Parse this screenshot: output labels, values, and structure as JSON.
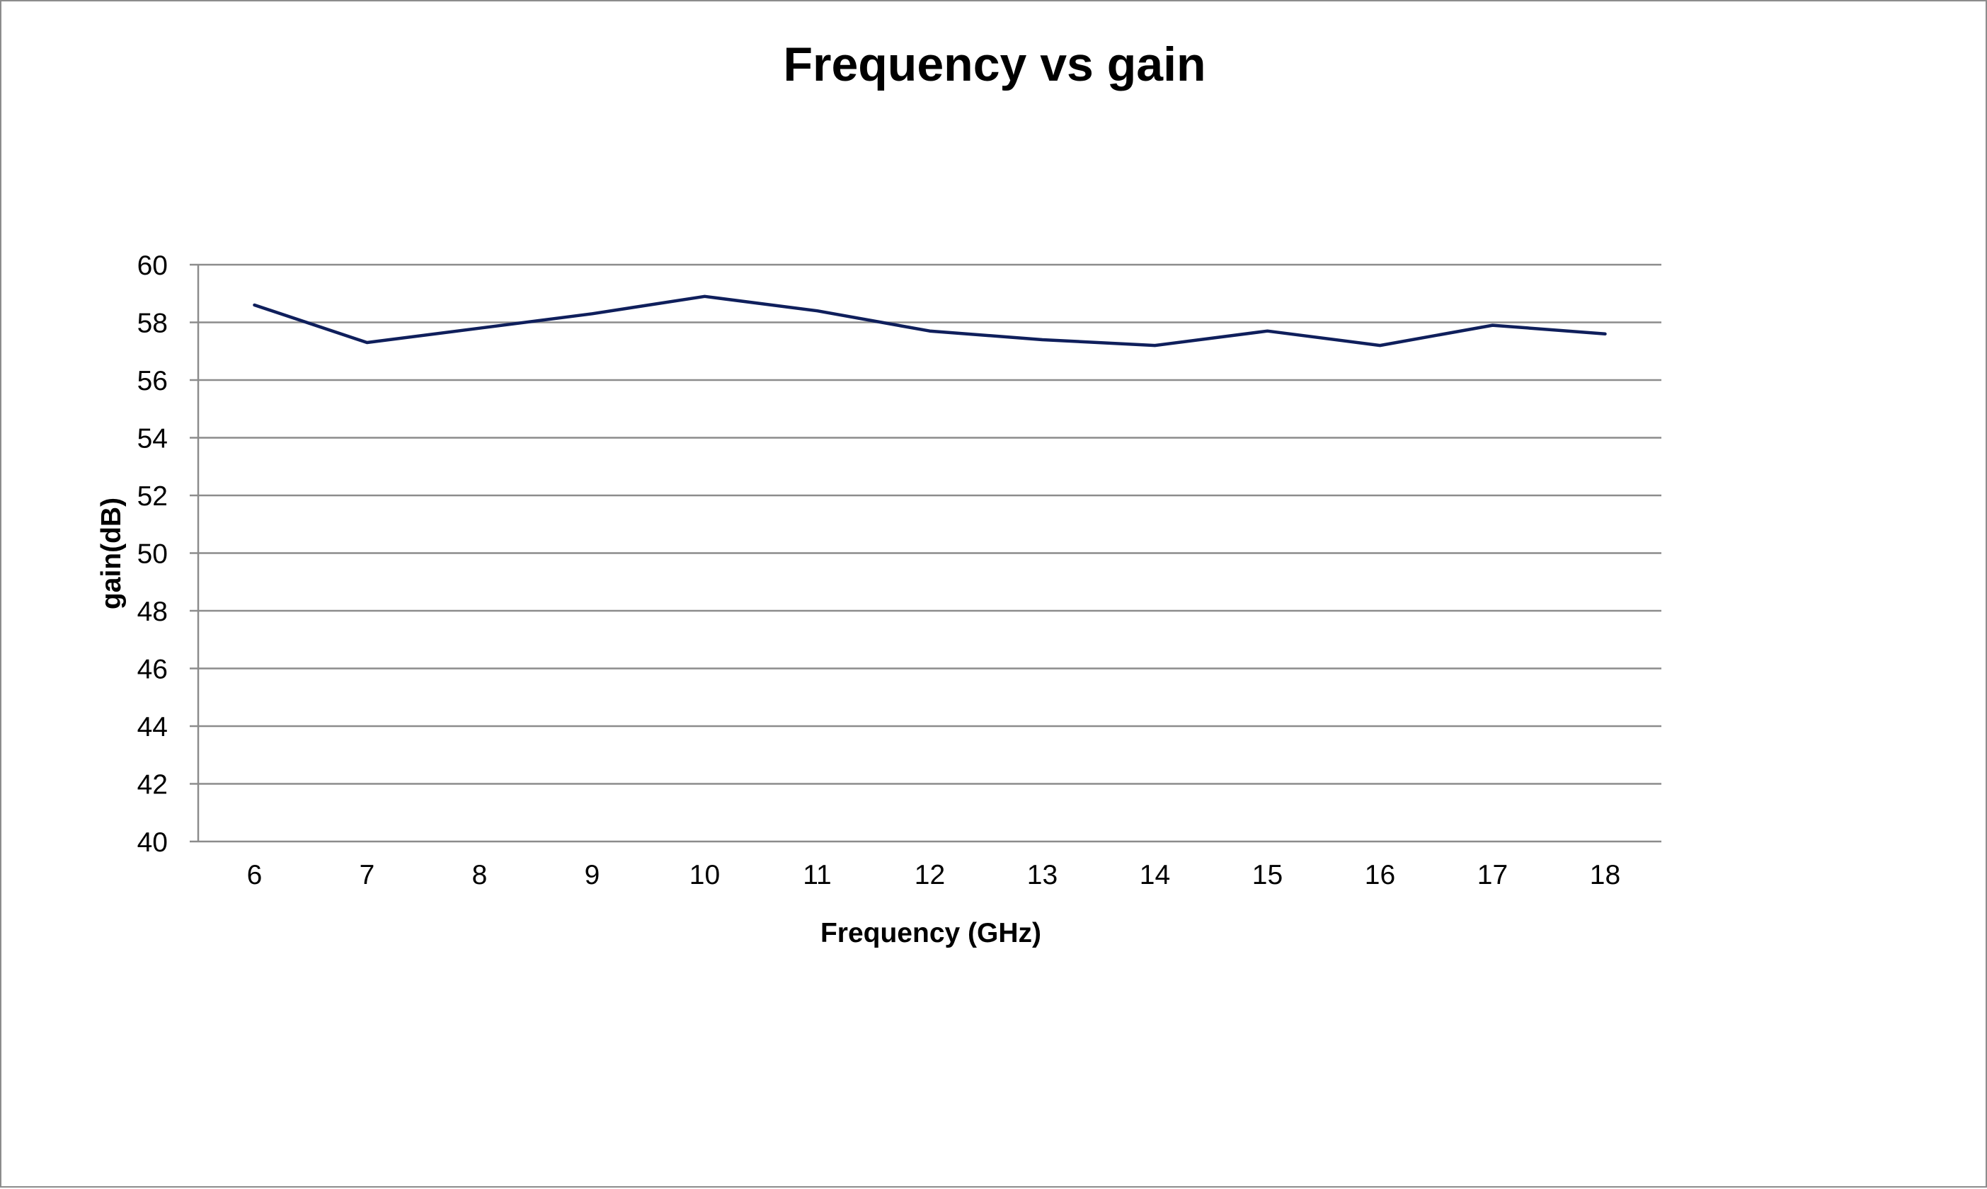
{
  "chart_data": {
    "type": "line",
    "title": "Frequency vs gain",
    "xlabel": "Frequency (GHz)",
    "ylabel": "gain(dB)",
    "categories": [
      "6",
      "7",
      "8",
      "9",
      "10",
      "11",
      "12",
      "13",
      "14",
      "15",
      "16",
      "17",
      "18"
    ],
    "series": [
      {
        "values": [
          58.6,
          57.3,
          57.8,
          58.3,
          58.9,
          58.4,
          57.7,
          57.4,
          57.2,
          57.7,
          57.2,
          57.9,
          57.6
        ],
        "color": "#0f1f5c"
      }
    ],
    "ylim": [
      40,
      60
    ],
    "yticks": [
      "40",
      "42",
      "44",
      "46",
      "48",
      "50",
      "52",
      "54",
      "56",
      "58",
      "60"
    ],
    "grid": "horizontal",
    "legend": "none"
  }
}
